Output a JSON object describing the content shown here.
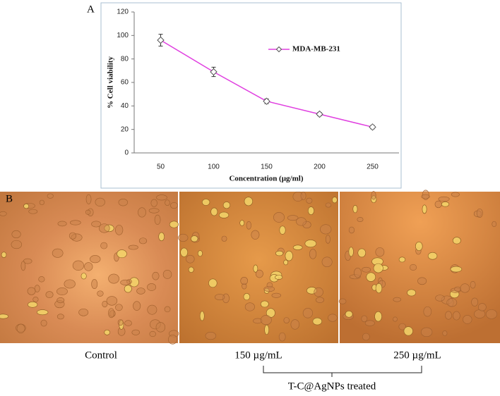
{
  "chart_data": {
    "type": "line",
    "panel_label": "A",
    "y_label": "% Cell viability",
    "x_label": "Concentration (µg/ml)",
    "categories": [
      "50",
      "100",
      "150",
      "200",
      "250"
    ],
    "series": [
      {
        "name": "MDA-MB-231",
        "color": "#e040e0",
        "marker_color": "#555555",
        "values": [
          96,
          69,
          44,
          33,
          22
        ],
        "errors": [
          5,
          4,
          2,
          1.5,
          1.5
        ]
      }
    ],
    "ylim": [
      0,
      120
    ],
    "yticks": [
      0,
      20,
      40,
      60,
      80,
      100,
      120
    ],
    "grid": false,
    "legend": "upper right"
  },
  "micrographs": {
    "panel_label": "B",
    "captions": [
      "Control",
      "150 µg/mL",
      "250 µg/mL"
    ],
    "group_label": "T-C@AgNPs treated"
  }
}
